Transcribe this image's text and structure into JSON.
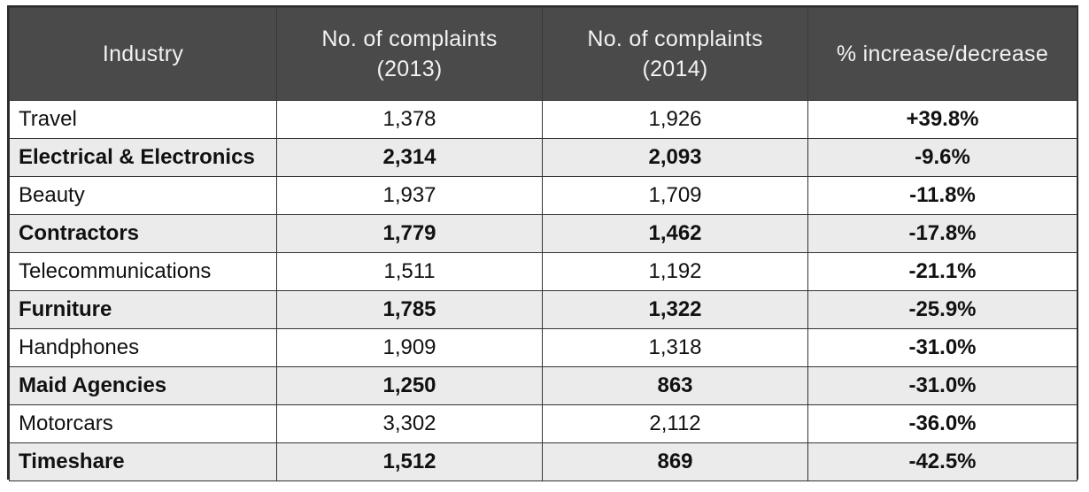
{
  "table": {
    "headers": {
      "industry": "Industry",
      "c2013_line1": "No. of complaints",
      "c2013_line2": "(2013)",
      "c2014_line1": "No. of complaints",
      "c2014_line2": "(2014)",
      "change": "% increase/decrease"
    },
    "rows": [
      {
        "industry": "Travel",
        "y2013": "1,378",
        "y2014": "1,926",
        "change": "+39.8%"
      },
      {
        "industry": "Electrical & Electronics",
        "y2013": "2,314",
        "y2014": "2,093",
        "change": "-9.6%"
      },
      {
        "industry": "Beauty",
        "y2013": "1,937",
        "y2014": "1,709",
        "change": "-11.8%"
      },
      {
        "industry": "Contractors",
        "y2013": "1,779",
        "y2014": "1,462",
        "change": "-17.8%"
      },
      {
        "industry": "Telecommunications",
        "y2013": "1,511",
        "y2014": "1,192",
        "change": "-21.1%"
      },
      {
        "industry": "Furniture",
        "y2013": "1,785",
        "y2014": "1,322",
        "change": "-25.9%"
      },
      {
        "industry": "Handphones",
        "y2013": "1,909",
        "y2014": "1,318",
        "change": "-31.0%"
      },
      {
        "industry": "Maid Agencies",
        "y2013": "1,250",
        "y2014": "863",
        "change": "-31.0%"
      },
      {
        "industry": "Motorcars",
        "y2013": "3,302",
        "y2014": "2,112",
        "change": "-36.0%"
      },
      {
        "industry": "Timeshare",
        "y2013": "1,512",
        "y2014": "869",
        "change": "-42.5%"
      }
    ]
  }
}
